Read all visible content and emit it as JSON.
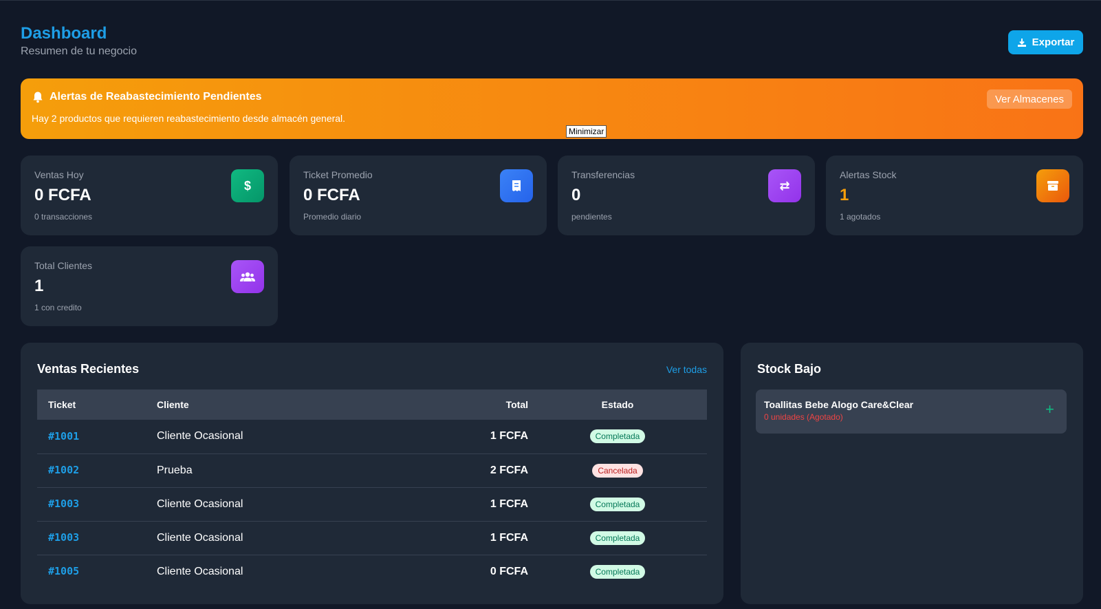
{
  "header": {
    "title": "Dashboard",
    "subtitle": "Resumen de tu negocio",
    "export_label": "Exportar"
  },
  "alert": {
    "title": "Alertas de Reabastecimiento Pendientes",
    "text": "Hay 2 productos que requieren reabastecimiento desde almacén general.",
    "button": "Ver Almacenes",
    "tooltip": "Minimizar"
  },
  "stats": [
    {
      "label": "Ventas Hoy",
      "value": "0 FCFA",
      "sub": "0 transacciones",
      "icon": "dollar-icon",
      "color": "#10b981"
    },
    {
      "label": "Ticket Promedio",
      "value": "0 FCFA",
      "sub": "Promedio diario",
      "icon": "receipt-icon",
      "color": "#3b82f6"
    },
    {
      "label": "Transferencias",
      "value": "0",
      "sub": "pendientes",
      "icon": "exchange-icon",
      "color": "#a855f7"
    },
    {
      "label": "Alertas Stock",
      "value": "1",
      "sub": "1 agotados",
      "icon": "box-icon",
      "color": "#f59e0b"
    },
    {
      "label": "Total Clientes",
      "value": "1",
      "sub": "1 con credito",
      "icon": "users-icon",
      "color": "#a855f7"
    }
  ],
  "recent_sales": {
    "title": "Ventas Recientes",
    "view_all": "Ver todas",
    "columns": {
      "ticket": "Ticket",
      "client": "Cliente",
      "total": "Total",
      "status": "Estado"
    },
    "rows": [
      {
        "ticket": "#1001",
        "client": "Cliente Ocasional",
        "total": "1 FCFA",
        "status": "Completada"
      },
      {
        "ticket": "#1002",
        "client": "Prueba",
        "total": "2 FCFA",
        "status": "Cancelada"
      },
      {
        "ticket": "#1003",
        "client": "Cliente Ocasional",
        "total": "1 FCFA",
        "status": "Completada"
      },
      {
        "ticket": "#1003",
        "client": "Cliente Ocasional",
        "total": "1 FCFA",
        "status": "Completada"
      },
      {
        "ticket": "#1005",
        "client": "Cliente Ocasional",
        "total": "0 FCFA",
        "status": "Completada"
      }
    ]
  },
  "low_stock": {
    "title": "Stock Bajo",
    "items": [
      {
        "name": "Toallitas Bebe Alogo Care&Clear",
        "qty": "0 unidades (Agotado)",
        "add": "+"
      }
    ]
  }
}
